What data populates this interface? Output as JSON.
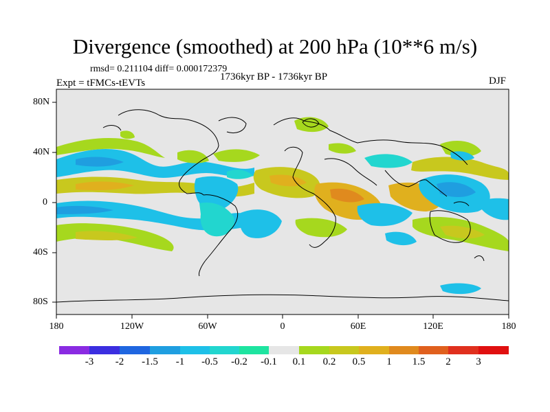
{
  "title": "Divergence (smoothed) at 200 hPa (10**6 m/s)",
  "stats_text": "rmsd= 0.211104 diff= 0.000172379",
  "center_subtitle": "1736kyr BP - 1736kyr BP",
  "left_subtitle": "Expt = tFMCs-tEVTs",
  "right_subtitle": "DJF",
  "x_tick_labels": [
    "180",
    "120W",
    "60W",
    "0",
    "60E",
    "120E",
    "180"
  ],
  "y_tick_labels": [
    "80N",
    "40N",
    "0",
    "40S",
    "80S"
  ],
  "colorbar": {
    "labels": [
      "-3",
      "-2",
      "-1.5",
      "-1",
      "-0.5",
      "-0.2",
      "-0.1",
      "0.1",
      "0.2",
      "0.5",
      "1",
      "1.5",
      "2",
      "3"
    ],
    "colors": [
      "#8a2be2",
      "#3b2ee0",
      "#1f66e0",
      "#1f9ee0",
      "#1ec0e8",
      "#22d6cf",
      "#1ee4a0",
      "#e6e6e6",
      "#a6d81e",
      "#c8c81e",
      "#e0b01e",
      "#e08a1e",
      "#e0601e",
      "#e0301e",
      "#e01010"
    ]
  },
  "map_colors": {
    "background": "#e6e6e6",
    "coast": "#000000"
  }
}
